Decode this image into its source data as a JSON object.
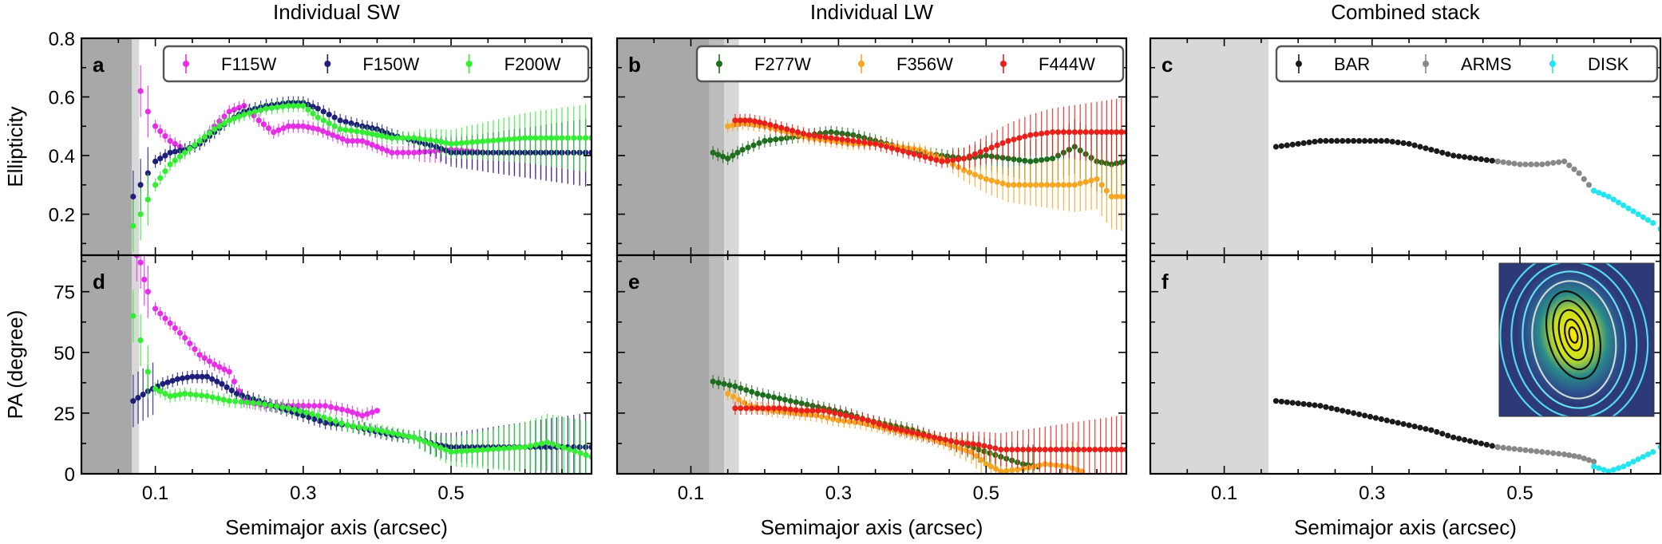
{
  "column_titles": [
    "Individual SW",
    "Individual LW",
    "Combined stack"
  ],
  "xlabel": "Semimajor axis (arcsec)",
  "ylabel_top": "Ellipticity",
  "ylabel_bottom": "PA (degree)",
  "x_ticks": [
    "0.1",
    "0.3",
    "0.5"
  ],
  "top_y_ticks": [
    "0.2",
    "0.4",
    "0.6",
    "0.8"
  ],
  "bottom_y_ticks": [
    "0",
    "25",
    "50",
    "75"
  ],
  "panel_labels": [
    "a",
    "b",
    "c",
    "d",
    "e",
    "f"
  ],
  "legends": [
    [
      {
        "name": "F115W",
        "color": "#e62ee6"
      },
      {
        "name": "F150W",
        "color": "#1f1f7a"
      },
      {
        "name": "F200W",
        "color": "#33ee33"
      }
    ],
    [
      {
        "name": "F277W",
        "color": "#1f6e1f"
      },
      {
        "name": "F356W",
        "color": "#f5a623"
      },
      {
        "name": "F444W",
        "color": "#e8201a"
      }
    ],
    [
      {
        "name": "BAR",
        "color": "#1a1a1a"
      },
      {
        "name": "ARMS",
        "color": "#888888"
      },
      {
        "name": "DISK",
        "color": "#22e5f0"
      }
    ]
  ],
  "chart_data": [
    {
      "panel": "a",
      "type": "scatter",
      "xlim": [
        0.0,
        0.69
      ],
      "ylim": [
        0.06,
        0.8
      ],
      "xlabel": "Semimajor axis (arcsec)",
      "ylabel": "Ellipticity",
      "shaded_x": [
        [
          0.0,
          0.068
        ],
        [
          0.068,
          0.078
        ]
      ],
      "series": [
        {
          "name": "F115W",
          "x": [
            0.08,
            0.09,
            0.1,
            0.12,
            0.14,
            0.16,
            0.18,
            0.2,
            0.22,
            0.24,
            0.26,
            0.28,
            0.3,
            0.32,
            0.34,
            0.36,
            0.38,
            0.4,
            0.42,
            0.45,
            0.5,
            0.55,
            0.6,
            0.65,
            0.69
          ],
          "y": [
            0.62,
            0.55,
            0.5,
            0.45,
            0.42,
            0.44,
            0.5,
            0.55,
            0.57,
            0.52,
            0.48,
            0.5,
            0.5,
            0.49,
            0.47,
            0.45,
            0.45,
            0.43,
            0.41,
            0.41,
            0.42,
            0.41,
            0.41,
            0.41,
            0.41
          ]
        },
        {
          "name": "F150W",
          "x": [
            0.07,
            0.08,
            0.09,
            0.1,
            0.12,
            0.14,
            0.16,
            0.18,
            0.2,
            0.22,
            0.25,
            0.28,
            0.3,
            0.32,
            0.35,
            0.38,
            0.4,
            0.42,
            0.45,
            0.48,
            0.5,
            0.55,
            0.6,
            0.65,
            0.69
          ],
          "y": [
            0.26,
            0.3,
            0.34,
            0.38,
            0.41,
            0.42,
            0.44,
            0.48,
            0.52,
            0.55,
            0.57,
            0.58,
            0.58,
            0.56,
            0.52,
            0.5,
            0.49,
            0.47,
            0.45,
            0.43,
            0.41,
            0.41,
            0.41,
            0.41,
            0.41
          ]
        },
        {
          "name": "F200W",
          "x": [
            0.07,
            0.08,
            0.09,
            0.1,
            0.12,
            0.14,
            0.16,
            0.18,
            0.2,
            0.22,
            0.25,
            0.28,
            0.3,
            0.32,
            0.35,
            0.38,
            0.4,
            0.42,
            0.45,
            0.48,
            0.5,
            0.55,
            0.6,
            0.65,
            0.69
          ],
          "y": [
            0.16,
            0.2,
            0.25,
            0.3,
            0.37,
            0.41,
            0.45,
            0.49,
            0.52,
            0.54,
            0.56,
            0.57,
            0.57,
            0.53,
            0.49,
            0.48,
            0.47,
            0.46,
            0.46,
            0.45,
            0.44,
            0.45,
            0.46,
            0.46,
            0.46
          ]
        }
      ]
    },
    {
      "panel": "b",
      "type": "scatter",
      "xlim": [
        0.0,
        0.69
      ],
      "ylim": [
        0.06,
        0.8
      ],
      "xlabel": "Semimajor axis (arcsec)",
      "ylabel": "Ellipticity",
      "shaded_x": [
        [
          0.0,
          0.125
        ],
        [
          0.125,
          0.145
        ],
        [
          0.145,
          0.165
        ]
      ],
      "series": [
        {
          "name": "F277W",
          "x": [
            0.13,
            0.15,
            0.17,
            0.2,
            0.23,
            0.26,
            0.29,
            0.32,
            0.35,
            0.38,
            0.41,
            0.44,
            0.47,
            0.5,
            0.53,
            0.56,
            0.59,
            0.62,
            0.65,
            0.67,
            0.69
          ],
          "y": [
            0.41,
            0.39,
            0.42,
            0.45,
            0.46,
            0.47,
            0.48,
            0.47,
            0.45,
            0.43,
            0.41,
            0.4,
            0.39,
            0.4,
            0.39,
            0.38,
            0.39,
            0.43,
            0.38,
            0.37,
            0.38
          ]
        },
        {
          "name": "F356W",
          "x": [
            0.15,
            0.17,
            0.2,
            0.23,
            0.26,
            0.29,
            0.32,
            0.35,
            0.38,
            0.41,
            0.44,
            0.47,
            0.5,
            0.53,
            0.56,
            0.59,
            0.62,
            0.65,
            0.67,
            0.69
          ],
          "y": [
            0.5,
            0.51,
            0.5,
            0.48,
            0.46,
            0.45,
            0.44,
            0.44,
            0.43,
            0.42,
            0.39,
            0.35,
            0.32,
            0.3,
            0.3,
            0.3,
            0.3,
            0.32,
            0.26,
            0.26
          ]
        },
        {
          "name": "F444W",
          "x": [
            0.16,
            0.18,
            0.2,
            0.23,
            0.26,
            0.29,
            0.32,
            0.35,
            0.38,
            0.41,
            0.44,
            0.47,
            0.5,
            0.53,
            0.56,
            0.59,
            0.62,
            0.65,
            0.67,
            0.69
          ],
          "y": [
            0.52,
            0.52,
            0.51,
            0.49,
            0.47,
            0.46,
            0.45,
            0.44,
            0.42,
            0.4,
            0.38,
            0.39,
            0.42,
            0.45,
            0.47,
            0.48,
            0.48,
            0.48,
            0.48,
            0.48
          ]
        }
      ]
    },
    {
      "panel": "c",
      "type": "scatter",
      "xlim": [
        0.0,
        0.69
      ],
      "ylim": [
        0.06,
        0.8
      ],
      "xlabel": "Semimajor axis (arcsec)",
      "ylabel": "Ellipticity",
      "shaded_x": [
        [
          0.0,
          0.16
        ]
      ],
      "series": [
        {
          "name": "BAR",
          "x": [
            0.17,
            0.2,
            0.23,
            0.26,
            0.29,
            0.32,
            0.35,
            0.38,
            0.41,
            0.44,
            0.47
          ],
          "y": [
            0.43,
            0.44,
            0.45,
            0.45,
            0.45,
            0.45,
            0.44,
            0.42,
            0.4,
            0.39,
            0.38
          ]
        },
        {
          "name": "ARMS",
          "x": [
            0.47,
            0.5,
            0.53,
            0.56,
            0.58,
            0.6
          ],
          "y": [
            0.38,
            0.37,
            0.37,
            0.38,
            0.34,
            0.28
          ]
        },
        {
          "name": "DISK",
          "x": [
            0.6,
            0.62,
            0.64,
            0.66,
            0.68,
            0.69
          ],
          "y": [
            0.28,
            0.26,
            0.23,
            0.2,
            0.17,
            0.15
          ]
        }
      ]
    },
    {
      "panel": "d",
      "type": "scatter",
      "xlim": [
        0.0,
        0.69
      ],
      "ylim": [
        0,
        90
      ],
      "xlabel": "Semimajor axis (arcsec)",
      "ylabel": "PA (degree)",
      "shaded_x": [
        [
          0.0,
          0.068
        ],
        [
          0.068,
          0.078
        ]
      ],
      "series": [
        {
          "name": "F115W",
          "x": [
            0.075,
            0.08,
            0.085,
            0.09,
            0.1,
            0.12,
            0.14,
            0.16,
            0.18,
            0.2,
            0.22,
            0.25,
            0.28,
            0.3,
            0.33,
            0.36,
            0.38,
            0.4
          ],
          "y": [
            90,
            87,
            80,
            75,
            68,
            62,
            56,
            49,
            45,
            42,
            30,
            28,
            28,
            28,
            28,
            26,
            24,
            26
          ]
        },
        {
          "name": "F150W",
          "x": [
            0.07,
            0.09,
            0.11,
            0.13,
            0.15,
            0.17,
            0.19,
            0.21,
            0.24,
            0.27,
            0.3,
            0.33,
            0.36,
            0.39,
            0.42,
            0.45,
            0.48,
            0.5,
            0.55,
            0.6,
            0.65,
            0.69
          ],
          "y": [
            30,
            34,
            37,
            39,
            40,
            40,
            37,
            33,
            30,
            27,
            24,
            21,
            20,
            18,
            16,
            15,
            12,
            11,
            11,
            11,
            11,
            11
          ]
        },
        {
          "name": "F200W",
          "x": [
            0.07,
            0.08,
            0.09,
            0.1,
            0.12,
            0.14,
            0.17,
            0.2,
            0.24,
            0.28,
            0.32,
            0.36,
            0.4,
            0.45,
            0.5,
            0.55,
            0.6,
            0.63,
            0.66,
            0.69
          ],
          "y": [
            65,
            55,
            42,
            35,
            32,
            33,
            32,
            30,
            29,
            27,
            24,
            20,
            18,
            15,
            9,
            10,
            11,
            13,
            10,
            7
          ]
        }
      ]
    },
    {
      "panel": "e",
      "type": "scatter",
      "xlim": [
        0.0,
        0.69
      ],
      "ylim": [
        0,
        90
      ],
      "xlabel": "Semimajor axis (arcsec)",
      "ylabel": "PA (degree)",
      "shaded_x": [
        [
          0.0,
          0.125
        ],
        [
          0.125,
          0.145
        ],
        [
          0.145,
          0.165
        ]
      ],
      "series": [
        {
          "name": "F277W",
          "x": [
            0.13,
            0.16,
            0.19,
            0.22,
            0.25,
            0.28,
            0.31,
            0.34,
            0.37,
            0.4,
            0.43,
            0.46,
            0.49,
            0.52,
            0.55,
            0.57
          ],
          "y": [
            38,
            36,
            33,
            31,
            29,
            27,
            25,
            22,
            20,
            18,
            15,
            13,
            10,
            7,
            4,
            3
          ]
        },
        {
          "name": "F356W",
          "x": [
            0.15,
            0.18,
            0.21,
            0.24,
            0.27,
            0.3,
            0.33,
            0.36,
            0.39,
            0.42,
            0.45,
            0.48,
            0.5,
            0.52,
            0.55,
            0.58,
            0.61,
            0.63
          ],
          "y": [
            33,
            28,
            26,
            25,
            24,
            22,
            21,
            19,
            17,
            15,
            12,
            9,
            4,
            1,
            2,
            4,
            3,
            1
          ]
        },
        {
          "name": "F444W",
          "x": [
            0.16,
            0.19,
            0.22,
            0.25,
            0.28,
            0.31,
            0.34,
            0.37,
            0.4,
            0.43,
            0.46,
            0.49,
            0.52,
            0.55,
            0.58,
            0.61,
            0.64,
            0.67,
            0.69
          ],
          "y": [
            27,
            27,
            27,
            26,
            26,
            24,
            22,
            19,
            17,
            15,
            13,
            12,
            10,
            10,
            10,
            10,
            10,
            10,
            10
          ]
        }
      ]
    },
    {
      "panel": "f",
      "type": "scatter",
      "xlim": [
        0.0,
        0.69
      ],
      "ylim": [
        0,
        90
      ],
      "xlabel": "Semimajor axis (arcsec)",
      "ylabel": "PA (degree)",
      "shaded_x": [
        [
          0.0,
          0.16
        ]
      ],
      "series": [
        {
          "name": "BAR",
          "x": [
            0.17,
            0.2,
            0.23,
            0.26,
            0.29,
            0.32,
            0.35,
            0.38,
            0.41,
            0.44,
            0.47
          ],
          "y": [
            30,
            29,
            28,
            26,
            24,
            22,
            20,
            18,
            15,
            13,
            11
          ]
        },
        {
          "name": "ARMS",
          "x": [
            0.47,
            0.5,
            0.53,
            0.56,
            0.58,
            0.6
          ],
          "y": [
            11,
            10,
            9,
            8,
            7,
            5
          ]
        },
        {
          "name": "DISK",
          "x": [
            0.6,
            0.62,
            0.64,
            0.66,
            0.68,
            0.69
          ],
          "y": [
            3,
            1,
            3,
            6,
            9,
            11
          ]
        }
      ]
    }
  ]
}
